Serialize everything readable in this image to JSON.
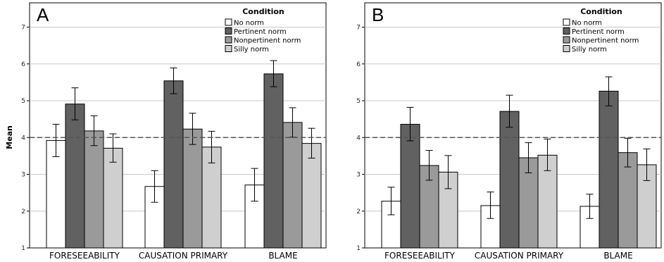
{
  "chart_data": [
    {
      "type": "bar",
      "panel_label": "A",
      "ylabel": "Mean",
      "ylim": [
        1,
        7
      ],
      "yticks": [
        1,
        2,
        3,
        4,
        5,
        6,
        7
      ],
      "grid": true,
      "reference_line": 4,
      "categories": [
        "FORESEEABILITY",
        "CAUSATION PRIMARY",
        "BLAME"
      ],
      "legend": {
        "title": "Condition",
        "placement": "top-right"
      },
      "series": [
        {
          "name": "No norm",
          "color": "#ffffff",
          "values": [
            3.92,
            2.67,
            2.71
          ],
          "errors": [
            [
              3.48,
              4.36
            ],
            [
              2.24,
              3.1
            ],
            [
              2.27,
              3.16
            ]
          ]
        },
        {
          "name": "Pertinent norm",
          "color": "#616161",
          "values": [
            4.91,
            5.54,
            5.73
          ],
          "errors": [
            [
              4.48,
              5.35
            ],
            [
              5.19,
              5.89
            ],
            [
              5.38,
              6.09
            ]
          ]
        },
        {
          "name": "Nonpertinent norm",
          "color": "#9a9a9a",
          "values": [
            4.18,
            4.23,
            4.41
          ],
          "errors": [
            [
              3.78,
              4.59
            ],
            [
              3.81,
              4.66
            ],
            [
              4.01,
              4.81
            ]
          ]
        },
        {
          "name": "Silly norm",
          "color": "#cfcfcf",
          "values": [
            3.71,
            3.74,
            3.84
          ],
          "errors": [
            [
              3.33,
              4.1
            ],
            [
              3.31,
              4.17
            ],
            [
              3.44,
              4.25
            ]
          ]
        }
      ]
    },
    {
      "type": "bar",
      "panel_label": "B",
      "ylabel": "",
      "ylim": [
        1,
        7
      ],
      "yticks": [
        1,
        2,
        3,
        4,
        5,
        6,
        7
      ],
      "grid": true,
      "reference_line": 4,
      "categories": [
        "FORESEEABILITY",
        "CAUSATION PRIMARY",
        "BLAME"
      ],
      "legend": {
        "title": "Condition",
        "placement": "top-right"
      },
      "series": [
        {
          "name": "No norm",
          "color": "#ffffff",
          "values": [
            2.27,
            2.15,
            2.13
          ],
          "errors": [
            [
              1.9,
              2.65
            ],
            [
              1.8,
              2.52
            ],
            [
              1.8,
              2.46
            ]
          ]
        },
        {
          "name": "Pertinent norm",
          "color": "#616161",
          "values": [
            4.36,
            4.71,
            5.26
          ],
          "errors": [
            [
              3.91,
              4.82
            ],
            [
              4.28,
              5.15
            ],
            [
              4.86,
              5.65
            ]
          ]
        },
        {
          "name": "Nonpertinent norm",
          "color": "#9a9a9a",
          "values": [
            3.24,
            3.45,
            3.59
          ],
          "errors": [
            [
              2.84,
              3.65
            ],
            [
              3.04,
              3.86
            ],
            [
              3.2,
              3.98
            ]
          ]
        },
        {
          "name": "Silly norm",
          "color": "#cfcfcf",
          "values": [
            3.06,
            3.52,
            3.26
          ],
          "errors": [
            [
              2.61,
              3.51
            ],
            [
              3.1,
              3.96
            ],
            [
              2.83,
              3.69
            ]
          ]
        }
      ]
    }
  ]
}
